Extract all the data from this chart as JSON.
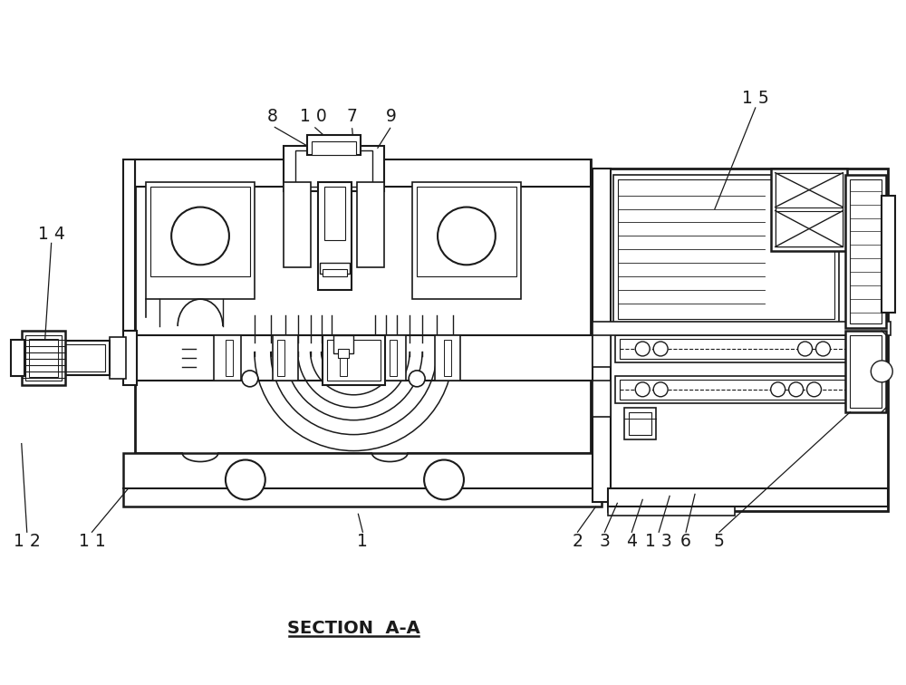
{
  "bg_color": "#ffffff",
  "lc": "#1a1a1a",
  "title": "SECTION  A-A",
  "figsize": [
    10.0,
    7.56
  ],
  "dpi": 100
}
